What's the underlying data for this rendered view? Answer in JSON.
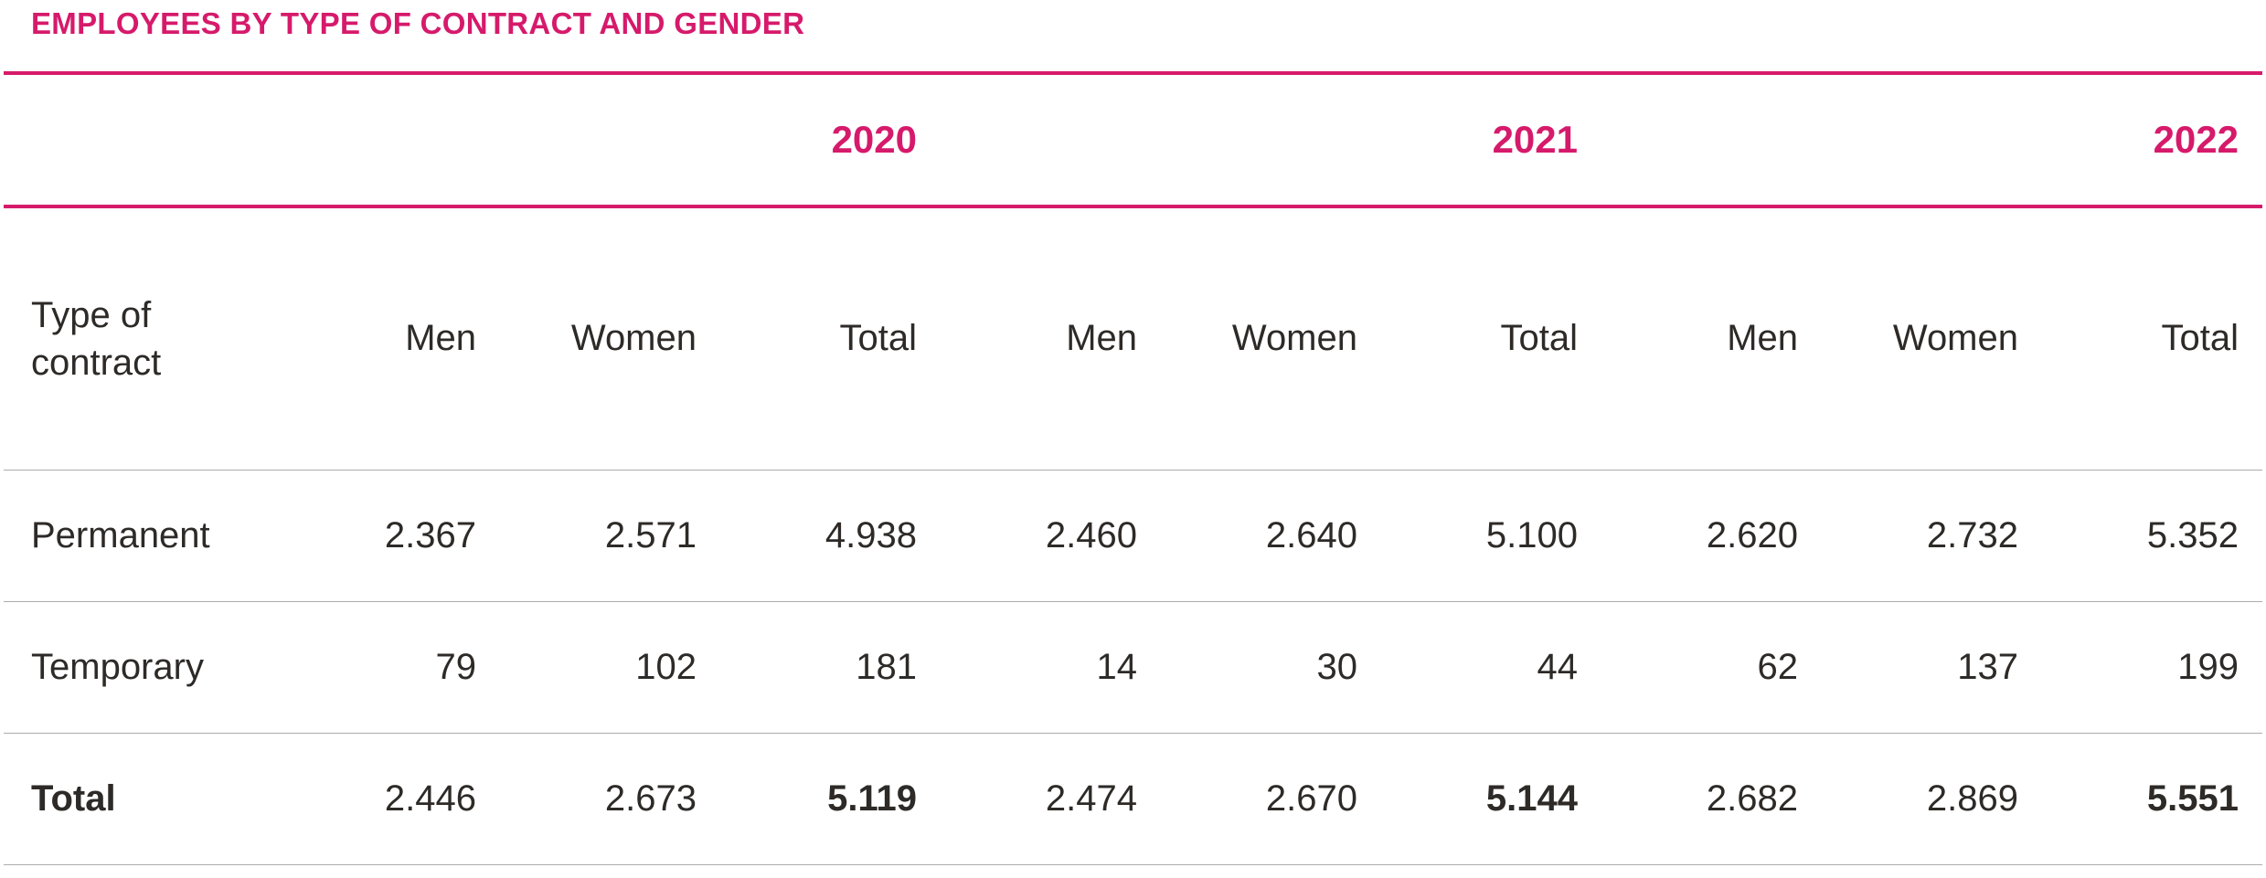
{
  "page": {
    "title": "EMPLOYEES BY TYPE OF CONTRACT AND GENDER"
  },
  "colors": {
    "accent": "#D61A6B",
    "text": "#2D2A27",
    "hairline": "#ACACAC"
  },
  "chart_data": {
    "type": "table",
    "title": "EMPLOYEES BY TYPE OF CONTRACT AND GENDER",
    "corner_label": "Type of contract",
    "year_groups": [
      "2020",
      "2021",
      "2022"
    ],
    "sub_columns": [
      "Men",
      "Women",
      "Total"
    ],
    "rows": [
      {
        "label": "Permanent",
        "values": [
          "2.367",
          "2.571",
          "4.938",
          "2.460",
          "2.640",
          "5.100",
          "2.620",
          "2.732",
          "5.352"
        ]
      },
      {
        "label": "Temporary",
        "values": [
          "79",
          "102",
          "181",
          "14",
          "30",
          "44",
          "62",
          "137",
          "199"
        ]
      },
      {
        "label": "Total",
        "values": [
          "2.446",
          "2.673",
          "5.119",
          "2.474",
          "2.670",
          "5.144",
          "2.682",
          "2.869",
          "5.551"
        ]
      }
    ]
  }
}
